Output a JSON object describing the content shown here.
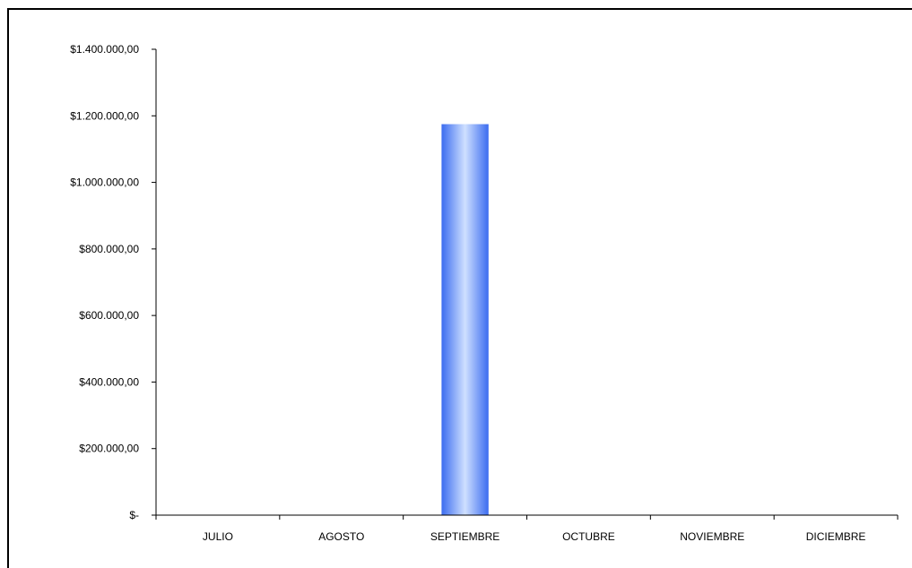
{
  "chart_data": {
    "type": "bar",
    "title": "",
    "xlabel": "",
    "ylabel": "",
    "categories": [
      "JULIO",
      "AGOSTO",
      "SEPTIEMBRE",
      "OCTUBRE",
      "NOVIEMBRE",
      "DICIEMBRE"
    ],
    "values": [
      0,
      0,
      1175000,
      0,
      0,
      0
    ],
    "ylim": [
      0,
      1400000
    ],
    "y_ticks": [
      0,
      200000,
      400000,
      600000,
      800000,
      1000000,
      1200000,
      1400000
    ],
    "y_tick_labels": [
      "$-",
      "$200.000,00",
      "$400.000,00",
      "$600.000,00",
      "$800.000,00",
      "$1.000.000,00",
      "$1.200.000,00",
      "$1.400.000,00"
    ],
    "grid": false,
    "legend": "none",
    "colors": {
      "bar_edge": "#3b6cf0",
      "bar_center": "#cfe0ff",
      "axis": "#000000"
    }
  }
}
